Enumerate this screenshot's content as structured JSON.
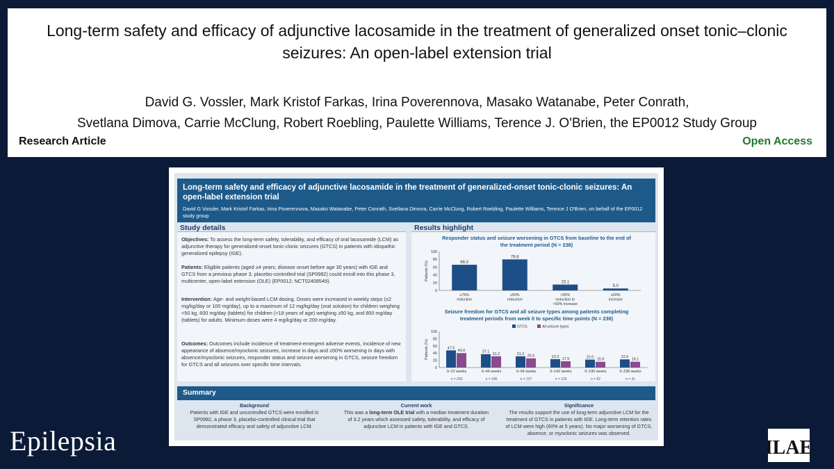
{
  "header": {
    "title": "Long-term safety and efficacy of adjunctive lacosamide in the treatment of generalized onset tonic–clonic seizures: An open-label extension trial",
    "authors_line1": "David G. Vossler, Mark Kristof Farkas, Irina Poverennova, Masako Watanabe, Peter Conrath,",
    "authors_line2": "Svetlana Dimova, Carrie McClung, Robert Roebling, Paulette Williams, Terence J. O'Brien, the EP0012 Study Group",
    "article_type": "Research Article",
    "access": "Open Access"
  },
  "abstract": {
    "banner_title": "Long-term safety and efficacy of adjunctive lacosamide in the treatment of generalized-onset tonic-clonic seizures: An open-label extension trial",
    "banner_authors": "David G Vossler, Mark Kristof Farkas, Irina Poverennova, Masako Watanabe, Peter Conrath, Svetlana Dimova, Carrie McClung, Robert Roebling, Paulette Williams, Terence J O'Brien, on behalf of the EP0012 study group",
    "study_details_heading": "Study details",
    "objectives_label": "Objectives:",
    "objectives_text": "To assess the long-term safety, tolerability, and efficacy of oral lacosamide (LCM) as adjunctive therapy for generalized-onset tonic-clonic seizures (GTCS) in patients with idiopathic generalized epilepsy (IGE).",
    "patients_label": "Patients:",
    "patients_text": "Eligible patients (aged ≥4 years; disease onset before age 30 years) with IGE and GTCS from a previous phase 3, placebo-controlled trial (SP0982) could enroll into this phase 3, multicenter, open-label extension (OLE) (EP0012; NCT02408549).",
    "intervention_label": "Intervention:",
    "intervention_text": "Age- and weight-based LCM dosing. Doses were increased in weekly steps (≤2 mg/kg/day or 100 mg/day), up to a maximum of 12 mg/kg/day (oral solution) for children weighing <50 kg, 600 mg/day (tablets) for children (<18 years of age) weighing ≥50 kg, and 800 mg/day (tablets) for adults. Minimum doses were 4 mg/kg/day or 200 mg/day.",
    "outcomes_label": "Outcomes:",
    "outcomes_text": "Outcomes include incidence of treatment-emergent adverse events, incidence of new appearance of absence/myoclonic seizures, increase in days and ≥50% worsening in days with absence/myoclonic seizures, responder status and seizure worsening in GTCS, seizure freedom for GTCS and all seizures over specific time intervals.",
    "results_heading": "Results highlight",
    "summary_heading": "Summary",
    "background_heading": "Background",
    "background_text": "Patients with IGE and uncontrolled GTCS were enrolled in SP0982, a phase 3, placebo-controlled clinical trial that demonstrated efficacy and safety of adjunctive LCM.",
    "current_heading": "Current work",
    "current_text_a": "This was a ",
    "current_text_b": "long-term OLE trial",
    "current_text_c": " with a median treatment duration of 3.2 years which assessed safety, tolerability, and efficacy of adjunctive LCM in patients with IGE and GTCS.",
    "significance_heading": "Significance",
    "significance_text": "The results support the use of long-term adjunctive LCM for the treatment of GTCS in patients with IGE. Long-term retention rates of LCM were high (60% at 5 years). No major worsening of GTCS, absence, or myoclonic seizures was observed."
  },
  "chart_data": [
    {
      "type": "bar",
      "title": "Responder status and seizure worsening in GTCS from baseline to the end of the treatment period (N = 238)",
      "ylabel": "Patients (%)",
      "ylim": [
        0,
        100
      ],
      "yticks": [
        "0",
        "20",
        "40",
        "60",
        "80",
        "100"
      ],
      "categories": [
        "≥75% reduction",
        "≥50% reduction",
        "<50% reduction to <50% increase",
        "≥50% increase"
      ],
      "category_lines": [
        [
          "≥75%",
          "reduction"
        ],
        [
          "≥50%",
          "reduction"
        ],
        [
          "<50%",
          "reduction to",
          "<50% increase"
        ],
        [
          "≥50%",
          "increase"
        ]
      ],
      "values": [
        66.0,
        79.8,
        15.1,
        5.0
      ],
      "value_labels": [
        "66.0",
        "79.8",
        "15.1",
        "5.0"
      ],
      "color": "#1d4f86"
    },
    {
      "type": "bar",
      "title": "Seizure freedom for GTCS and all seizure types among patients completing treatment periods from week 0 to specific time points (N = 238)",
      "ylabel": "Patients (%)",
      "ylim": [
        0,
        100
      ],
      "yticks": [
        "0",
        "20",
        "40",
        "60",
        "80",
        "100"
      ],
      "categories": [
        "0–22 weeks",
        "0–46 weeks",
        "0–94 weeks",
        "0–142 weeks",
        "0–190 weeks",
        "0–238 weeks"
      ],
      "n_labels": [
        "n = 200",
        "n = 186",
        "n = 157",
        "n = 120",
        "n = 82",
        "n = 31"
      ],
      "series": [
        {
          "name": "GTCS",
          "values": [
            47.5,
            37.1,
            31.2,
            23.3,
            22.0,
            22.6
          ],
          "labels": [
            "47.5",
            "37.1",
            "31.2",
            "23.3",
            "22.0",
            "22.6"
          ],
          "color": "#1d4f86"
        },
        {
          "name": "All seizure types",
          "values": [
            40.0,
            31.2,
            25.5,
            17.5,
            15.9,
            16.1
          ],
          "labels": [
            "40.0",
            "31.2",
            "25.5",
            "17.5",
            "15.9",
            "16.1"
          ],
          "color": "#8a4a8e"
        }
      ],
      "legend": "top-center"
    }
  ],
  "footer": {
    "journal": "Epilepsia",
    "logo_text": "ILAE"
  }
}
